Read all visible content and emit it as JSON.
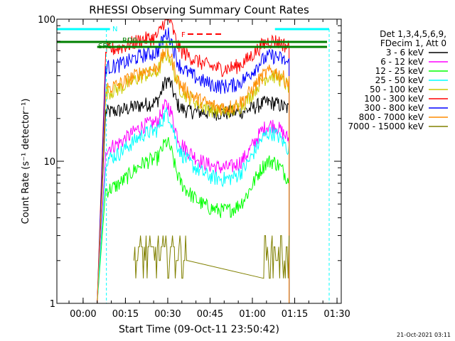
{
  "chart_data": {
    "type": "line",
    "title": "RHESSI Observing Summary Count Rates",
    "xlabel": "Start Time (09-Oct-11 23:50:42)",
    "ylabel": "Count Rate (s⁻¹ detector⁻¹)",
    "y_scale": "log",
    "ylim": [
      1,
      100
    ],
    "xlim": [
      "23:50:42",
      "01:31:30"
    ],
    "x_ticks": [
      "00:00",
      "00:15",
      "00:30",
      "00:45",
      "01:00",
      "01:15",
      "01:30"
    ],
    "y_ticks": [
      "1",
      "10",
      "100"
    ],
    "legend_header": [
      "Det 1,3,4,5,6,9,",
      "FDecim 1, Att 0"
    ],
    "legend_position": "right",
    "series": [
      {
        "name": "3 - 6 keV",
        "color": "#000000"
      },
      {
        "name": "6 - 12 keV",
        "color": "#ff00ff"
      },
      {
        "name": "12 - 25 keV",
        "color": "#00ff00"
      },
      {
        "name": "25 - 50 keV",
        "color": "#00ffff"
      },
      {
        "name": "50 - 100 keV",
        "color": "#cccc00"
      },
      {
        "name": "100 - 300 keV",
        "color": "#ff0000"
      },
      {
        "name": "300 - 800 keV",
        "color": "#0000ff"
      },
      {
        "name": "800 - 7000 keV",
        "color": "#ff8c00"
      },
      {
        "name": "7000 - 15000 keV",
        "color": "#808000"
      }
    ],
    "annotations": [
      {
        "label": "N",
        "color": "#00ffff"
      },
      {
        "label": "RD0",
        "color": "#008000"
      },
      {
        "label": "SFC",
        "color": "#008000"
      },
      {
        "label": "F",
        "color": "#ff0000"
      }
    ]
  },
  "footer_timestamp": "21-Oct-2021 03:11"
}
